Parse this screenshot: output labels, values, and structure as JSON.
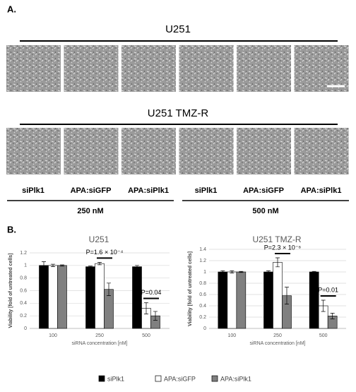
{
  "panel_a": {
    "label": "A.",
    "rows": [
      "U251",
      "U251 TMZ-R"
    ],
    "treatments": [
      "siPlk1",
      "APA:siGFP",
      "APA:siPlk1",
      "siPlk1",
      "APA:siGFP",
      "APA:siPlk1"
    ],
    "doses": [
      "250 nM",
      "500 nM"
    ]
  },
  "panel_b_label": "B.",
  "legend": [
    {
      "name": "siPlk1",
      "color": "#000000"
    },
    {
      "name": "APA:siGFP",
      "color": "#ffffff"
    },
    {
      "name": "APA:siPlk1",
      "color": "#808080"
    }
  ],
  "chart_data": [
    {
      "type": "bar",
      "title": "U251",
      "y_label": "Viability [fold of untreated cells]",
      "x_label": "siRNA concentration [nM]",
      "categories": [
        "100",
        "250",
        "500"
      ],
      "ylim": [
        0,
        1.2
      ],
      "yticks": [
        0,
        0.2,
        0.4,
        0.6,
        0.8,
        1,
        1.2
      ],
      "series": [
        {
          "values": [
            1.0,
            0.98,
            0.98
          ],
          "errors": [
            0.06,
            0.01,
            0.02
          ]
        },
        {
          "values": [
            1.0,
            1.03,
            0.32
          ],
          "errors": [
            0.02,
            0.02,
            0.09
          ]
        },
        {
          "values": [
            1.0,
            0.62,
            0.2
          ],
          "errors": [
            0.01,
            0.1,
            0.07
          ]
        }
      ],
      "annotations": [
        "P=1.6 × 10⁻⁴",
        "P=0.04"
      ]
    },
    {
      "type": "bar",
      "title": "U251 TMZ-R",
      "y_label": "Viability [fold of untreated cells]",
      "x_label": "siRNA concentration [nM]",
      "categories": [
        "100",
        "250",
        "500"
      ],
      "ylim": [
        0,
        1.4
      ],
      "yticks": [
        0,
        0.2,
        0.4,
        0.6,
        0.8,
        1,
        1.2,
        1.4
      ],
      "series": [
        {
          "values": [
            1.0,
            1.0,
            1.0
          ],
          "errors": [
            0.02,
            0.02,
            0.01
          ]
        },
        {
          "values": [
            1.0,
            1.17,
            0.4
          ],
          "errors": [
            0.02,
            0.08,
            0.1
          ]
        },
        {
          "values": [
            1.0,
            0.58,
            0.22
          ],
          "errors": [
            0.01,
            0.15,
            0.05
          ]
        }
      ],
      "annotations": [
        "P=2.3 × 10⁻⁶",
        "P=0.01"
      ]
    }
  ]
}
